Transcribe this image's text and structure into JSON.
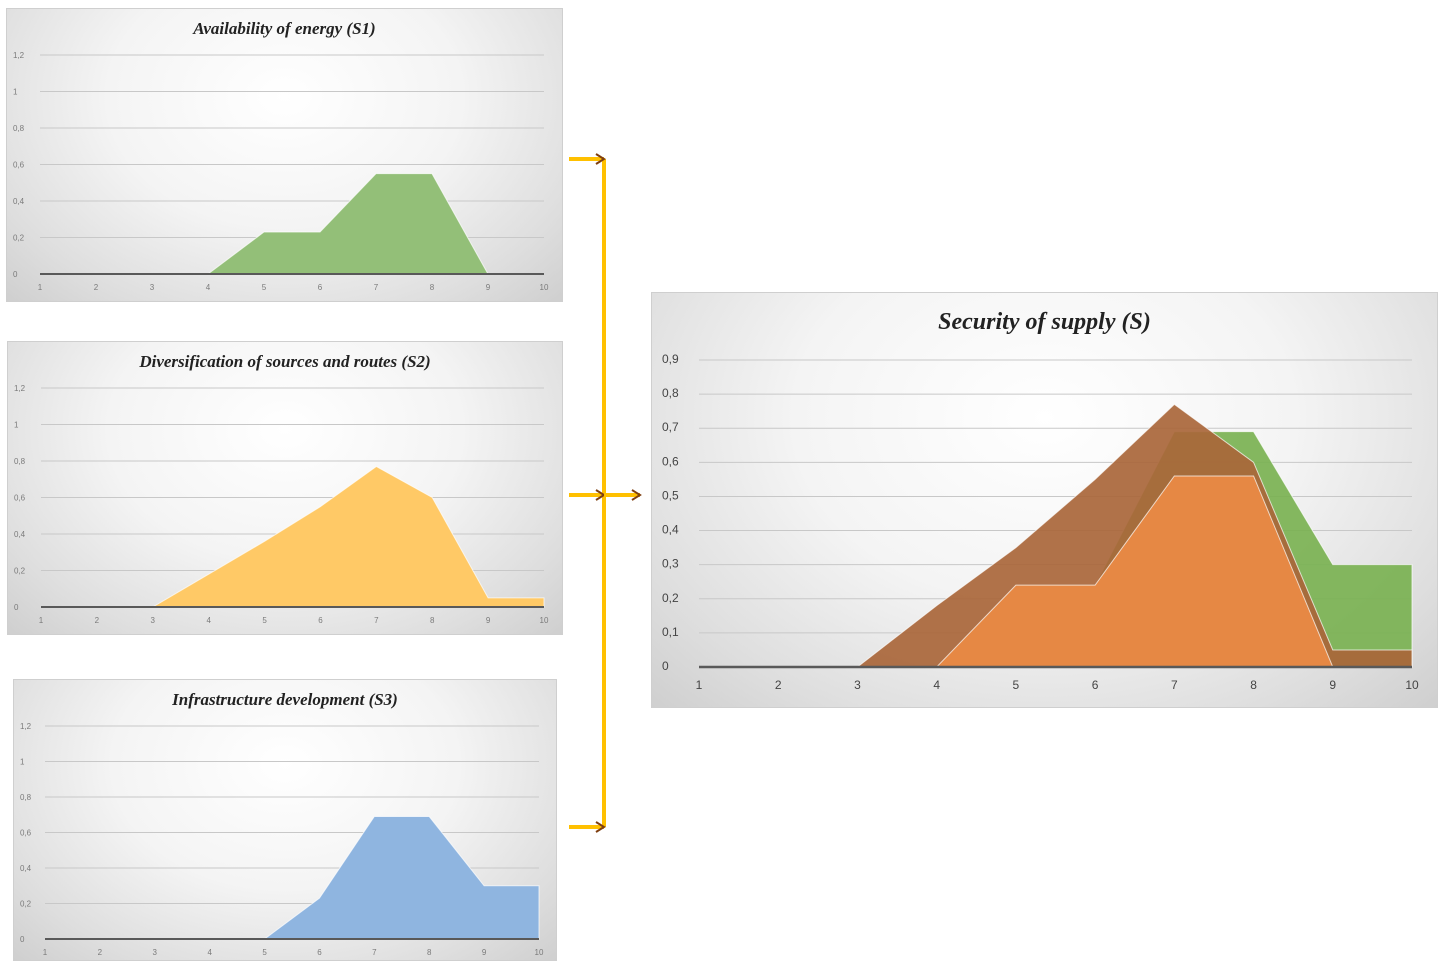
{
  "charts": {
    "s1": {
      "title": "Availability of energy (S1)",
      "x_ticks": [
        "1",
        "2",
        "3",
        "4",
        "5",
        "6",
        "7",
        "8",
        "9",
        "10"
      ],
      "y_ticks": [
        "0",
        "0,2",
        "0,4",
        "0,6",
        "0,8",
        "1",
        "1,2"
      ]
    },
    "s2": {
      "title": "Diversification of sources and routes (S2)",
      "x_ticks": [
        "1",
        "2",
        "3",
        "4",
        "5",
        "6",
        "7",
        "8",
        "9",
        "10"
      ],
      "y_ticks": [
        "0",
        "0,2",
        "0,4",
        "0,6",
        "0,8",
        "1",
        "1,2"
      ]
    },
    "s3": {
      "title": "Infrastructure development (S3)",
      "x_ticks": [
        "1",
        "2",
        "3",
        "4",
        "5",
        "6",
        "7",
        "8",
        "9",
        "10"
      ],
      "y_ticks": [
        "0",
        "0,2",
        "0,4",
        "0,6",
        "0,8",
        "1",
        "1,2"
      ]
    },
    "s": {
      "title": "Security of supply (S)",
      "x_ticks": [
        "1",
        "2",
        "3",
        "4",
        "5",
        "6",
        "7",
        "8",
        "9",
        "10"
      ],
      "y_ticks": [
        "0",
        "0,1",
        "0,2",
        "0,3",
        "0,4",
        "0,5",
        "0,6",
        "0,7",
        "0,8",
        "0,9"
      ]
    }
  },
  "colors": {
    "green": "#93bf78",
    "yellow": "#ffc966",
    "blue": "#8fb5e0",
    "brown": "#a9663a",
    "orange": "#e98a45",
    "green_dark": "#78b04f",
    "connector": "#ffc000",
    "connector_arrow": "#7f3f10",
    "axis": "#595959",
    "grid": "#c8c8c8"
  },
  "chart_data": [
    {
      "type": "area",
      "x": [
        1,
        2,
        3,
        4,
        5,
        6,
        7,
        8,
        9,
        10
      ],
      "series": [
        {
          "values": [
            0,
            0,
            0,
            0,
            0.23,
            0.23,
            0.55,
            0.55,
            0,
            0
          ]
        }
      ],
      "xlim": [
        1,
        10
      ],
      "ylim": [
        0,
        1.2
      ],
      "title": "Availability of energy (S1)",
      "xlabel": "",
      "ylabel": "",
      "grid": true
    },
    {
      "type": "area",
      "x": [
        1,
        2,
        3,
        4,
        5,
        6,
        7,
        8,
        9,
        10
      ],
      "series": [
        {
          "values": [
            0,
            0,
            0,
            0.18,
            0.36,
            0.55,
            0.77,
            0.6,
            0.05,
            0.05
          ]
        }
      ],
      "xlim": [
        1,
        10
      ],
      "ylim": [
        0,
        1.2
      ],
      "title": "Diversification of sources and routes (S2)",
      "xlabel": "",
      "ylabel": "",
      "grid": true
    },
    {
      "type": "area",
      "x": [
        1,
        2,
        3,
        4,
        5,
        6,
        7,
        8,
        9,
        10
      ],
      "series": [
        {
          "values": [
            0,
            0,
            0,
            0,
            0,
            0.23,
            0.69,
            0.69,
            0.3,
            0.3
          ]
        }
      ],
      "xlim": [
        1,
        10
      ],
      "ylim": [
        0,
        1.2
      ],
      "title": "Infrastructure development (S3)",
      "xlabel": "",
      "ylabel": "",
      "grid": true
    },
    {
      "type": "area",
      "x": [
        1,
        2,
        3,
        4,
        5,
        6,
        7,
        8,
        9,
        10
      ],
      "series": [
        {
          "values": [
            0,
            0,
            0,
            0,
            0.24,
            0.24,
            0.69,
            0.69,
            0.3,
            0.3
          ]
        },
        {
          "values": [
            0,
            0,
            0,
            0.18,
            0.35,
            0.55,
            0.77,
            0.6,
            0.05,
            0.05
          ]
        },
        {
          "values": [
            0,
            0,
            0,
            0,
            0.24,
            0.24,
            0.56,
            0.56,
            0,
            0
          ]
        }
      ],
      "xlim": [
        1,
        10
      ],
      "ylim": [
        0,
        0.9
      ],
      "title": "Security of supply (S)",
      "xlabel": "",
      "ylabel": "",
      "grid": true
    }
  ]
}
